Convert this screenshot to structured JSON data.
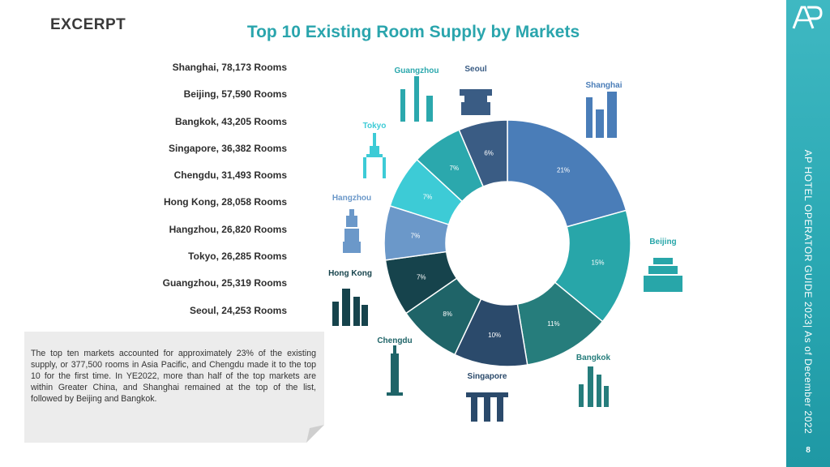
{
  "header": {
    "excerpt": "EXCERPT",
    "title": "Top 10 Existing Room Supply by Markets"
  },
  "list": [
    "Shanghai, 78,173 Rooms",
    "Beijing, 57,590 Rooms",
    "Bangkok, 43,205 Rooms",
    "Singapore, 36,382 Rooms",
    "Chengdu, 31,493 Rooms",
    "Hong Kong, 28,058 Rooms",
    "Hangzhou, 26,820 Rooms",
    "Tokyo, 26,285 Rooms",
    "Guangzhou,  25,319 Rooms",
    "Seoul, 24,253 Rooms"
  ],
  "note": {
    "text": "The top ten markets accounted for approximately 23% of the existing supply, or 377,500 rooms in Asia Pacific, and Chengdu made it to the top 10 for the first time. In YE2022, more than half of the top markets are within Greater China, and Shanghai remained at the top of the list, followed by Beijing and Bangkok."
  },
  "sidebar": {
    "vertical_text": "AP HOTEL OPERATOR GUIDE 2023| As of December 2022",
    "page_number": "8",
    "logo_icon": "ap-logo-icon"
  },
  "chart_data": {
    "type": "pie",
    "donut": true,
    "title": "",
    "slices": [
      {
        "label": "Shanghai",
        "value": 78173,
        "pct_label": "21%",
        "color": "#4a7db8",
        "label_color": "#4a7db8",
        "icon": "shanghai-skyline-icon"
      },
      {
        "label": "Beijing",
        "value": 57590,
        "pct_label": "15%",
        "color": "#28a6a9",
        "label_color": "#28a6a9",
        "icon": "beijing-gate-icon"
      },
      {
        "label": "Bangkok",
        "value": 43205,
        "pct_label": "11%",
        "color": "#267d7c",
        "label_color": "#267d7c",
        "icon": "bangkok-temple-icon"
      },
      {
        "label": "Singapore",
        "value": 36382,
        "pct_label": "10%",
        "color": "#2b4a6b",
        "label_color": "#2b4a6b",
        "icon": "singapore-marina-icon"
      },
      {
        "label": "Chengdu",
        "value": 31493,
        "pct_label": "8%",
        "color": "#1f6468",
        "label_color": "#1f6468",
        "icon": "chengdu-pagoda-icon"
      },
      {
        "label": "Hong Kong",
        "value": 28058,
        "pct_label": "7%",
        "color": "#16434c",
        "label_color": "#16434c",
        "icon": "hongkong-towers-icon"
      },
      {
        "label": "Hangzhou",
        "value": 26820,
        "pct_label": "7%",
        "color": "#6b98c9",
        "label_color": "#6b98c9",
        "icon": "hangzhou-pagoda-icon"
      },
      {
        "label": "Tokyo",
        "value": 26285,
        "pct_label": "7%",
        "color": "#3dcbd6",
        "label_color": "#3dcbd6",
        "icon": "tokyo-tower-icon"
      },
      {
        "label": "Guangzhou",
        "value": 25319,
        "pct_label": "7%",
        "color": "#2ba8ad",
        "label_color": "#2ba8ad",
        "icon": "guangzhou-tower-icon"
      },
      {
        "label": "Seoul",
        "value": 24253,
        "pct_label": "6%",
        "color": "#3a5c84",
        "label_color": "#3a5c84",
        "icon": "seoul-gate-icon"
      }
    ]
  }
}
